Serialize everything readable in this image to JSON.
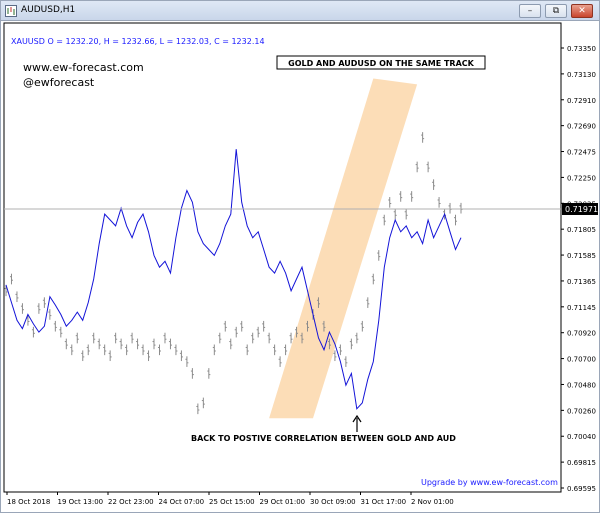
{
  "window": {
    "title": "AUDUSD,H1",
    "minimize_icon": "minimize-icon",
    "restore_icon": "restore-icon",
    "close_icon": "close-icon"
  },
  "overlay_quote": "XAUUSD O = 1232.20, H = 1232.66, L = 1232.03, C = 1232.14",
  "watermark": {
    "line1": "www.ew-forecast.com",
    "line2": "@ewforecast"
  },
  "headline": "GOLD AND AUDUSD ON THE SAME TRACK",
  "annotation": "BACK TO POSTIVE CORRELATION BETWEEN GOLD AND AUD",
  "upgrade_text": "Upgrade by www.ew-forecast.com",
  "current_price": "0.71971",
  "colors": {
    "audusd": "#1414d8",
    "gold": "#8c8c8c",
    "channel": "#fbd7aa",
    "text_blue": "#1a1aff",
    "axis": "#000000"
  },
  "chart_data": {
    "type": "line",
    "title": "GOLD AND AUDUSD ON THE SAME TRACK",
    "y_ticks": [
      "0.73350",
      "0.73130",
      "0.72910",
      "0.72690",
      "0.72475",
      "0.72250",
      "0.72025",
      "0.71805",
      "0.71585",
      "0.71365",
      "0.71145",
      "0.70920",
      "0.70700",
      "0.70480",
      "0.70260",
      "0.70040",
      "0.69815",
      "0.69595"
    ],
    "x_ticks": [
      "18 Oct 2018",
      "19 Oct 13:00",
      "22 Oct 23:00",
      "24 Oct 07:00",
      "25 Oct 15:00",
      "29 Oct 01:00",
      "30 Oct 09:00",
      "31 Oct 17:00",
      "2 Nov 01:00"
    ],
    "ylim": [
      0.69595,
      0.7357
    ],
    "series": [
      {
        "name": "AUDUSD",
        "style": "line",
        "values": [
          0.7135,
          0.712,
          0.7105,
          0.7098,
          0.711,
          0.7102,
          0.7095,
          0.71,
          0.7125,
          0.7118,
          0.711,
          0.71,
          0.7105,
          0.7112,
          0.7105,
          0.712,
          0.714,
          0.717,
          0.7195,
          0.719,
          0.7185,
          0.72,
          0.7185,
          0.7175,
          0.7188,
          0.7195,
          0.718,
          0.716,
          0.715,
          0.7155,
          0.7145,
          0.7175,
          0.72,
          0.7215,
          0.7205,
          0.718,
          0.717,
          0.7165,
          0.716,
          0.717,
          0.7185,
          0.7195,
          0.725,
          0.7205,
          0.7185,
          0.7175,
          0.718,
          0.7165,
          0.715,
          0.7145,
          0.7155,
          0.7145,
          0.713,
          0.714,
          0.715,
          0.713,
          0.711,
          0.709,
          0.708,
          0.7095,
          0.7085,
          0.707,
          0.705,
          0.706,
          0.703,
          0.7035,
          0.7055,
          0.707,
          0.7105,
          0.715,
          0.7175,
          0.719,
          0.718,
          0.7185,
          0.7175,
          0.718,
          0.717,
          0.719,
          0.7175,
          0.7185,
          0.7195,
          0.718,
          0.7165,
          0.7175
        ]
      },
      {
        "name": "XAUUSD",
        "style": "bars",
        "values": [
          0.713,
          0.714,
          0.7125,
          0.7115,
          0.7105,
          0.7095,
          0.7115,
          0.712,
          0.711,
          0.71,
          0.7095,
          0.7085,
          0.708,
          0.709,
          0.7075,
          0.708,
          0.709,
          0.7085,
          0.708,
          0.7075,
          0.709,
          0.7085,
          0.708,
          0.709,
          0.7085,
          0.708,
          0.7075,
          0.7085,
          0.708,
          0.709,
          0.7085,
          0.708,
          0.7075,
          0.707,
          0.706,
          0.703,
          0.7035,
          0.706,
          0.708,
          0.709,
          0.71,
          0.7085,
          0.7095,
          0.71,
          0.708,
          0.709,
          0.7095,
          0.71,
          0.709,
          0.708,
          0.707,
          0.708,
          0.709,
          0.7095,
          0.709,
          0.71,
          0.711,
          0.712,
          0.71,
          0.7085,
          0.7075,
          0.708,
          0.707,
          0.7085,
          0.709,
          0.71,
          0.712,
          0.714,
          0.716,
          0.719,
          0.7205,
          0.7195,
          0.721,
          0.7195,
          0.721,
          0.7235,
          0.726,
          0.7235,
          0.722,
          0.7205,
          0.7195,
          0.72,
          0.719,
          0.72
        ]
      }
    ],
    "channel": {
      "label": "",
      "corners": [
        {
          "x_index": 48,
          "y": 0.7022
        },
        {
          "x_index": 56,
          "y": 0.7022
        },
        {
          "x_index": 75,
          "y": 0.7305
        },
        {
          "x_index": 67,
          "y": 0.731
        }
      ]
    }
  }
}
